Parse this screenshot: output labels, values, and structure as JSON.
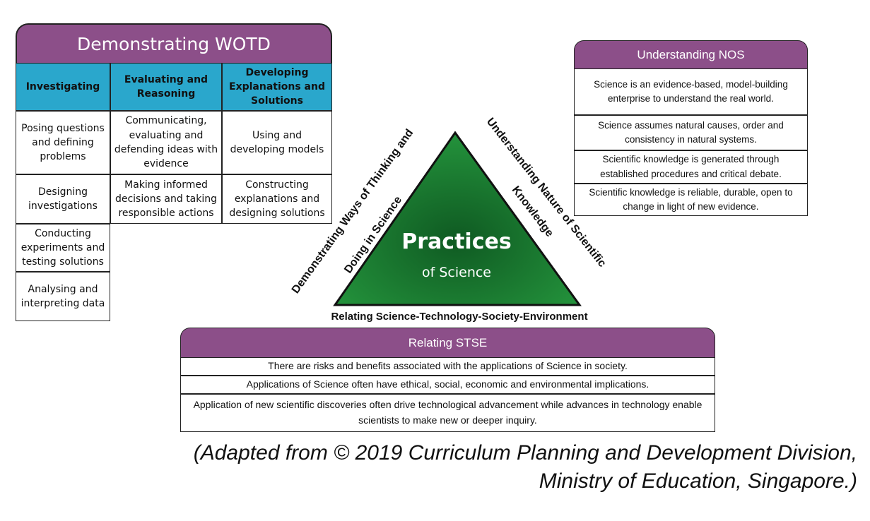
{
  "wotd": {
    "title": "Demonstrating WOTD",
    "columns": [
      "Investigating",
      "Evaluating and Reasoning",
      "Developing Explanations and Solutions"
    ],
    "investigating": [
      "Posing questions and defining problems",
      "Designing investigations",
      "Conducting experiments and testing solutions",
      "Analysing and interpreting data"
    ],
    "evaluating": [
      "Communicating, evaluating and defending ideas with evidence",
      "Making informed decisions and taking responsible actions"
    ],
    "developing": [
      "Using and developing models",
      "Constructing explanations and designing solutions"
    ]
  },
  "nos": {
    "title": "Understanding NOS",
    "items": [
      "Science is an evidence-based, model-building enterprise to understand the real world.",
      "Science assumes natural causes, order and consistency in natural systems.",
      "Scientific knowledge is generated through established procedures and critical debate.",
      "Scientific knowledge is reliable, durable, open to change in light of new evidence."
    ]
  },
  "triangle": {
    "title": "Practices",
    "subtitle": "of Science",
    "left_label_1": "Demonstrating Ways of Thinking and",
    "left_label_2": "Doing in Science",
    "right_label_1": "Understanding Nature of Scientific",
    "right_label_2": "Knowledge",
    "base_label": "Relating Science-Technology-Society-Environment",
    "fill_color": "#1e7e34"
  },
  "stse": {
    "title": "Relating STSE",
    "items": [
      "There are risks and benefits associated with the applications of Science in society.",
      "Applications of Science often have ethical, social, economic and environmental implications.",
      "Application of new scientific discoveries often drive technological advancement while advances in technology enable scientists to make new or deeper inquiry."
    ]
  },
  "credit": {
    "line1": "(Adapted from © 2019 Curriculum Planning and Development Division,",
    "line2": "Ministry of Education, Singapore.)"
  },
  "colors": {
    "header_purple": "#8c4f89",
    "column_blue": "#2aa7cc",
    "triangle_green": "#1e7e34"
  }
}
